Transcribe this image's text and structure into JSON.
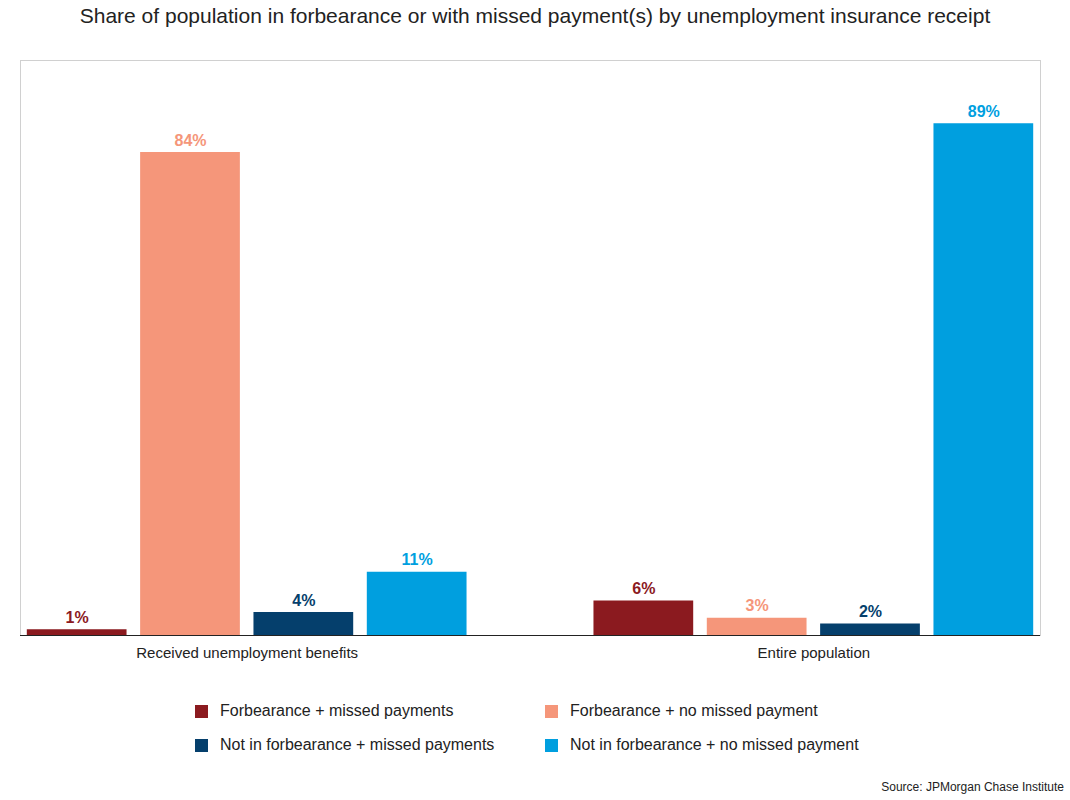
{
  "chart_data": {
    "type": "bar",
    "title": "Share of population in forbearance or with missed payment(s) by unemployment insurance receipt",
    "source": "Source: JPMorgan Chase Institute",
    "categories": [
      "Received unemployment benefits",
      "Entire population"
    ],
    "series": [
      {
        "name": "Forbearance + missed payments",
        "color": "#8b1a1f",
        "values": [
          1,
          6
        ],
        "value_labels": [
          "1%",
          "6%"
        ]
      },
      {
        "name": "Forbearance + no missed payment",
        "color": "#f5967a",
        "values": [
          84,
          3
        ],
        "value_labels": [
          "84%",
          "3%"
        ]
      },
      {
        "name": "Not in forbearance + missed payments",
        "color": "#053f6c",
        "values": [
          4,
          2
        ],
        "value_labels": [
          "4%",
          "2%"
        ]
      },
      {
        "name": "Not in forbearance + no missed payment",
        "color": "#009fdf",
        "values": [
          11,
          89
        ],
        "value_labels": [
          "11%",
          "89%"
        ]
      }
    ],
    "ylim": [
      0,
      100
    ],
    "yticks": [],
    "grid": false,
    "data_labels": true,
    "tick_labels": "x",
    "legend": "bottom"
  }
}
